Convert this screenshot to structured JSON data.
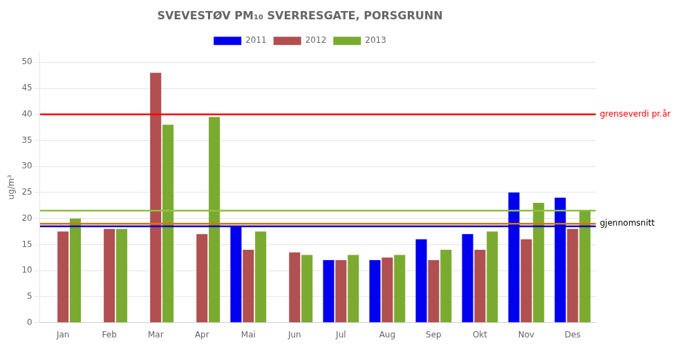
{
  "chart_data": {
    "type": "bar",
    "title": "SVEVESTØV PM₁₀ SVERRESGATE, PORSGRUNN",
    "y_label": "ug/m³",
    "categories": [
      "Jan",
      "Feb",
      "Mar",
      "Apr",
      "Mai",
      "Jun",
      "Jul",
      "Aug",
      "Sep",
      "Okt",
      "Nov",
      "Des"
    ],
    "series": [
      {
        "name": "2011",
        "color": "#0000EE",
        "values": [
          null,
          null,
          null,
          null,
          18.5,
          null,
          12.0,
          12.0,
          16.0,
          17.0,
          25.0,
          24.0
        ]
      },
      {
        "name": "2012",
        "color": "#B05050",
        "values": [
          17.5,
          18.0,
          48.0,
          17.0,
          14.0,
          13.5,
          12.0,
          12.5,
          12.0,
          14.0,
          16.0,
          18.0
        ]
      },
      {
        "name": "2013",
        "color": "#7AAB30",
        "values": [
          20.0,
          18.0,
          38.0,
          39.5,
          17.5,
          13.0,
          13.0,
          13.0,
          14.0,
          17.5,
          23.0,
          21.5
        ]
      }
    ],
    "hlines": [
      {
        "y": 40.0,
        "color": "#FF0000"
      },
      {
        "y": 21.5,
        "color": "#90C040"
      },
      {
        "y": 19.0,
        "color": "#E07000"
      },
      {
        "y": 18.5,
        "color": "#0000CC"
      }
    ],
    "annotations": [
      {
        "text": "grenseverdi pr.år",
        "y": 40.0,
        "color": "#FF0000"
      },
      {
        "text": "gjennomsnitt",
        "y": 19.0,
        "color": "#000000"
      }
    ],
    "ylim": [
      0,
      52
    ],
    "yticks": [
      0,
      5,
      10,
      15,
      20,
      25,
      30,
      35,
      40,
      45,
      50
    ],
    "grid": true,
    "legend": "top"
  }
}
